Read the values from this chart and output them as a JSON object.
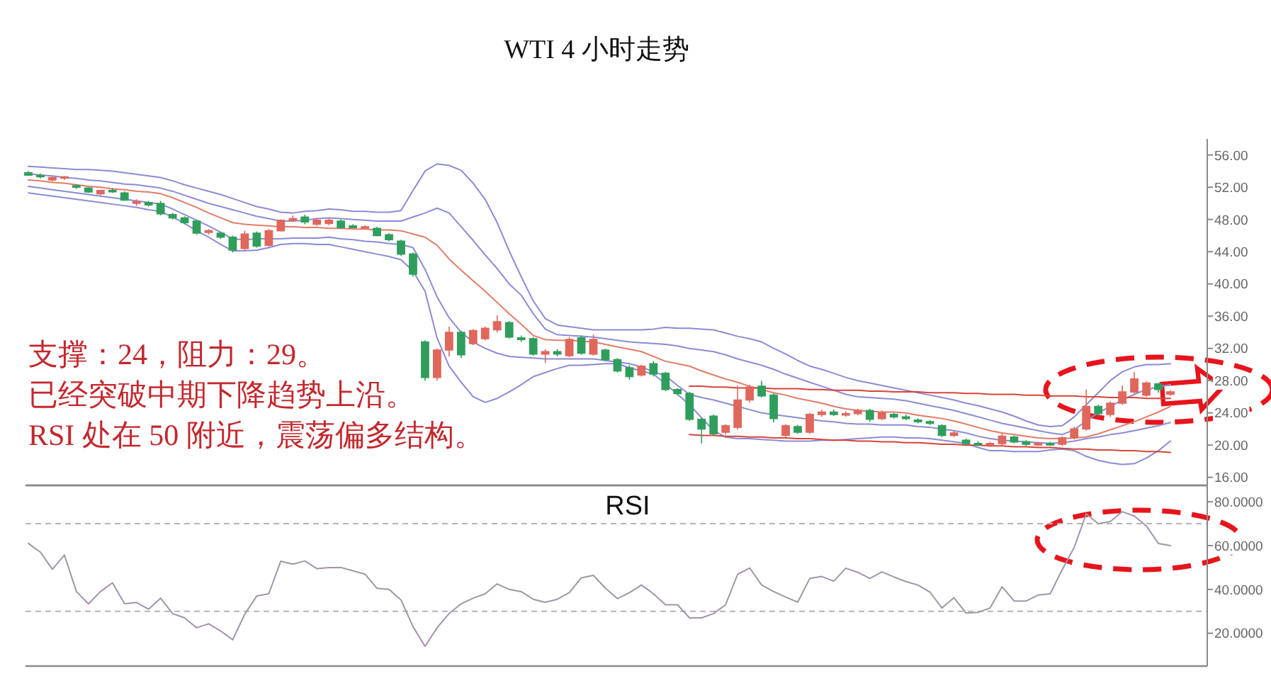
{
  "chart_data": [
    {
      "type": "candlestick",
      "title": "WTI 4 小时走势",
      "categories": [
        null,
        null,
        null,
        null,
        null,
        null,
        null,
        null,
        null,
        null,
        null,
        null,
        null,
        null,
        null,
        null,
        null,
        null,
        null,
        null,
        null,
        null,
        null,
        null,
        null,
        null,
        null,
        null,
        null,
        null,
        null,
        null,
        null,
        null,
        null,
        null,
        null,
        null,
        null,
        null,
        null,
        null,
        null,
        null,
        null,
        null,
        null,
        null,
        null,
        null,
        null,
        null,
        null,
        null,
        null,
        null,
        null,
        null,
        null,
        null,
        null,
        null,
        null,
        null,
        null,
        null,
        null,
        null,
        null,
        null,
        null,
        null,
        null,
        null,
        null,
        null,
        null,
        null,
        null,
        null,
        null,
        null,
        null,
        null,
        null,
        null,
        null,
        null,
        null,
        null,
        null,
        null,
        null,
        null,
        null,
        null
      ],
      "ohlc": [
        [
          53.8,
          54.0,
          53.4,
          53.5
        ],
        [
          53.5,
          53.7,
          53.1,
          53.3
        ],
        [
          52.9,
          53.4,
          52.7,
          53.2
        ],
        [
          53.2,
          53.4,
          52.9,
          53.3
        ],
        [
          52.2,
          52.4,
          51.8,
          52.0
        ],
        [
          51.9,
          52.0,
          51.3,
          51.4
        ],
        [
          51.2,
          51.7,
          51.0,
          51.6
        ],
        [
          51.6,
          51.9,
          51.3,
          51.5
        ],
        [
          51.3,
          51.5,
          50.3,
          50.4
        ],
        [
          50.0,
          50.5,
          49.7,
          50.2
        ],
        [
          50.1,
          50.3,
          49.6,
          49.8
        ],
        [
          50.0,
          50.3,
          48.5,
          48.7
        ],
        [
          48.6,
          48.8,
          48.0,
          48.2
        ],
        [
          48.2,
          48.4,
          47.4,
          47.6
        ],
        [
          47.8,
          48.0,
          46.1,
          46.3
        ],
        [
          46.4,
          46.8,
          46.1,
          46.6
        ],
        [
          46.3,
          46.5,
          45.6,
          45.8
        ],
        [
          45.8,
          46.0,
          43.9,
          44.2
        ],
        [
          44.4,
          46.6,
          44.2,
          46.2
        ],
        [
          46.3,
          46.5,
          44.5,
          44.7
        ],
        [
          44.8,
          46.8,
          44.6,
          46.6
        ],
        [
          46.6,
          48.0,
          46.5,
          47.9
        ],
        [
          47.9,
          48.5,
          47.7,
          48.1
        ],
        [
          48.3,
          48.6,
          47.4,
          47.7
        ],
        [
          47.4,
          48.2,
          47.2,
          47.9
        ],
        [
          47.5,
          48.1,
          47.3,
          47.9
        ],
        [
          47.8,
          48.0,
          46.8,
          47.0
        ],
        [
          47.2,
          47.4,
          46.9,
          47.0
        ],
        [
          47.0,
          47.3,
          46.8,
          47.1
        ],
        [
          46.9,
          47.1,
          45.9,
          46.0
        ],
        [
          46.1,
          46.3,
          45.3,
          45.5
        ],
        [
          45.3,
          45.5,
          43.5,
          43.7
        ],
        [
          43.7,
          43.9,
          40.9,
          41.2
        ],
        [
          32.8,
          33.0,
          28.0,
          28.4
        ],
        [
          28.4,
          32.0,
          28.0,
          31.8
        ],
        [
          31.8,
          34.7,
          31.0,
          34.0
        ],
        [
          34.0,
          34.2,
          30.8,
          31.2
        ],
        [
          32.6,
          34.4,
          32.4,
          34.2
        ],
        [
          33.2,
          34.7,
          33.0,
          34.5
        ],
        [
          34.3,
          36.1,
          34.0,
          35.3
        ],
        [
          35.2,
          35.4,
          33.2,
          33.4
        ],
        [
          33.3,
          33.6,
          32.8,
          33.1
        ],
        [
          33.2,
          33.4,
          31.1,
          31.3
        ],
        [
          31.3,
          31.9,
          30.2,
          31.6
        ],
        [
          31.6,
          31.9,
          31.0,
          31.3
        ],
        [
          31.1,
          33.4,
          30.9,
          33.1
        ],
        [
          33.3,
          33.6,
          31.2,
          31.4
        ],
        [
          31.3,
          33.7,
          31.1,
          33.1
        ],
        [
          31.8,
          32.0,
          30.4,
          30.6
        ],
        [
          30.6,
          30.8,
          29.0,
          29.2
        ],
        [
          29.6,
          29.9,
          28.1,
          28.5
        ],
        [
          28.7,
          30.0,
          28.5,
          29.8
        ],
        [
          30.1,
          30.4,
          28.5,
          28.8
        ],
        [
          28.9,
          29.1,
          26.7,
          26.9
        ],
        [
          26.9,
          27.1,
          26.2,
          26.4
        ],
        [
          26.4,
          26.6,
          23.0,
          23.2
        ],
        [
          23.2,
          23.4,
          20.2,
          22.0
        ],
        [
          23.6,
          23.8,
          21.2,
          21.4
        ],
        [
          21.6,
          22.6,
          21.3,
          22.4
        ],
        [
          22.2,
          27.4,
          21.9,
          25.6
        ],
        [
          25.6,
          27.5,
          25.3,
          27.2
        ],
        [
          27.3,
          28.0,
          25.9,
          26.1
        ],
        [
          26.2,
          26.4,
          22.8,
          23.3
        ],
        [
          21.2,
          22.6,
          21.0,
          22.4
        ],
        [
          22.3,
          22.5,
          21.4,
          21.6
        ],
        [
          21.6,
          24.0,
          21.4,
          23.8
        ],
        [
          23.8,
          24.4,
          23.5,
          24.1
        ],
        [
          24.1,
          24.4,
          23.6,
          23.8
        ],
        [
          23.8,
          24.2,
          23.5,
          23.9
        ],
        [
          23.9,
          24.5,
          23.7,
          24.3
        ],
        [
          24.3,
          24.5,
          22.9,
          23.2
        ],
        [
          23.3,
          24.3,
          23.1,
          24.0
        ],
        [
          23.8,
          24.0,
          23.3,
          23.5
        ],
        [
          23.5,
          23.8,
          23.1,
          23.3
        ],
        [
          23.1,
          23.3,
          22.7,
          22.9
        ],
        [
          22.9,
          23.1,
          22.5,
          22.7
        ],
        [
          22.4,
          22.6,
          21.0,
          21.2
        ],
        [
          21.2,
          21.8,
          21.0,
          21.5
        ],
        [
          20.6,
          20.8,
          19.9,
          20.2
        ],
        [
          20.2,
          20.5,
          19.9,
          20.1
        ],
        [
          20.1,
          20.4,
          19.8,
          20.2
        ],
        [
          20.2,
          21.5,
          20.0,
          21.1
        ],
        [
          21.0,
          21.2,
          20.2,
          20.4
        ],
        [
          20.4,
          20.6,
          19.9,
          20.1
        ],
        [
          20.1,
          20.4,
          19.9,
          20.2
        ],
        [
          20.2,
          20.4,
          19.9,
          20.1
        ],
        [
          20.1,
          21.1,
          19.9,
          20.9
        ],
        [
          20.9,
          22.3,
          20.7,
          22.0
        ],
        [
          22.0,
          26.9,
          21.8,
          24.8
        ],
        [
          24.8,
          25.0,
          23.5,
          23.9
        ],
        [
          23.8,
          25.4,
          23.5,
          25.2
        ],
        [
          25.2,
          27.4,
          25.0,
          26.6
        ],
        [
          26.6,
          29.1,
          26.4,
          28.2
        ],
        [
          26.2,
          27.9,
          26.0,
          27.7
        ],
        [
          27.6,
          27.7,
          26.5,
          26.9
        ],
        [
          26.3,
          26.8,
          26.1,
          26.6
        ]
      ],
      "colors": [
        "#2f9e5c",
        "#2f9e5c",
        "#e0675c",
        "#e0675c",
        "#2f9e5c",
        "#2f9e5c",
        "#e0675c",
        "#2f9e5c",
        "#2f9e5c",
        "#e0675c",
        "#2f9e5c",
        "#2f9e5c",
        "#2f9e5c",
        "#2f9e5c",
        "#2f9e5c",
        "#e0675c",
        "#2f9e5c",
        "#2f9e5c",
        "#e0675c",
        "#2f9e5c",
        "#e0675c",
        "#e0675c",
        "#e0675c",
        "#2f9e5c",
        "#e0675c",
        "#e0675c",
        "#2f9e5c",
        "#2f9e5c",
        "#e0675c",
        "#2f9e5c",
        "#2f9e5c",
        "#2f9e5c",
        "#2f9e5c",
        "#2f9e5c",
        "#e0675c",
        "#e0675c",
        "#2f9e5c",
        "#e0675c",
        "#e0675c",
        "#e0675c",
        "#2f9e5c",
        "#2f9e5c",
        "#2f9e5c",
        "#e0675c",
        "#2f9e5c",
        "#e0675c",
        "#2f9e5c",
        "#e0675c",
        "#2f9e5c",
        "#2f9e5c",
        "#2f9e5c",
        "#e0675c",
        "#2f9e5c",
        "#2f9e5c",
        "#2f9e5c",
        "#2f9e5c",
        "#2f9e5c",
        "#2f9e5c",
        "#e0675c",
        "#e0675c",
        "#e0675c",
        "#2f9e5c",
        "#2f9e5c",
        "#e0675c",
        "#2f9e5c",
        "#e0675c",
        "#e0675c",
        "#2f9e5c",
        "#e0675c",
        "#e0675c",
        "#2f9e5c",
        "#e0675c",
        "#2f9e5c",
        "#2f9e5c",
        "#2f9e5c",
        "#2f9e5c",
        "#2f9e5c",
        "#e0675c",
        "#2f9e5c",
        "#2f9e5c",
        "#e0675c",
        "#e0675c",
        "#2f9e5c",
        "#2f9e5c",
        "#e0675c",
        "#2f9e5c",
        "#e0675c",
        "#e0675c",
        "#e0675c",
        "#2f9e5c",
        "#e0675c",
        "#e0675c",
        "#e0675c",
        "#e0675c",
        "#2f9e5c",
        "#e0675c"
      ],
      "series": [
        {
          "type": "line",
          "color": "#8b8bd6",
          "values": [
            54.6,
            54.5,
            54.4,
            54.3,
            54.2,
            54.2,
            54.1,
            54.0,
            53.8,
            53.6,
            53.4,
            53.2,
            52.8,
            52.3,
            51.9,
            51.5,
            51.1,
            50.6,
            50.1,
            49.6,
            49.3,
            48.9,
            48.8,
            49.0,
            49.1,
            49.3,
            49.2,
            49.0,
            49.0,
            48.9,
            48.9,
            49.1,
            51.6,
            54.0,
            54.9,
            54.7,
            54.1,
            52.5,
            50.5,
            47.6,
            44.1,
            40.9,
            37.9,
            35.7,
            34.9,
            34.7,
            34.5,
            34.3,
            34.3,
            34.3,
            34.3,
            34.3,
            34.4,
            34.6,
            34.5,
            34.5,
            34.4,
            34.3,
            33.9,
            33.5,
            33.2,
            32.8,
            32.0,
            31.3,
            30.5,
            29.8,
            29.4,
            28.9,
            28.4,
            28.0,
            27.7,
            27.4,
            27.1,
            26.8,
            26.5,
            26.2,
            25.9,
            25.6,
            25.2,
            24.9,
            24.5,
            24.1,
            23.6,
            23.0,
            22.5,
            22.3,
            22.4,
            23.5,
            25.0,
            26.5,
            28.0,
            29.1,
            29.7,
            30.0,
            30.0,
            30.1
          ]
        },
        {
          "type": "line",
          "color": "#8b8bd6",
          "values": [
            53.7,
            53.5,
            53.4,
            53.2,
            53.1,
            52.9,
            52.8,
            52.6,
            52.4,
            52.3,
            52.1,
            51.9,
            51.5,
            51.0,
            50.5,
            50.0,
            49.6,
            49.2,
            48.8,
            48.4,
            48.1,
            47.8,
            47.8,
            47.9,
            48.1,
            48.2,
            48.1,
            48.0,
            47.9,
            47.8,
            47.8,
            47.8,
            48.3,
            48.8,
            49.4,
            48.8,
            47.1,
            45.4,
            43.6,
            41.9,
            40.0,
            38.6,
            36.3,
            34.4,
            33.7,
            33.6,
            33.5,
            33.4,
            33.2,
            33.0,
            32.8,
            32.7,
            32.6,
            32.5,
            32.3,
            32.0,
            31.8,
            31.6,
            31.2,
            30.7,
            30.3,
            29.9,
            29.4,
            28.8,
            28.3,
            27.8,
            27.3,
            26.8,
            26.3,
            26.0,
            25.9,
            25.8,
            25.7,
            25.5,
            25.2,
            24.9,
            24.6,
            24.3,
            23.9,
            23.5,
            23.1,
            22.7,
            22.4,
            22.1,
            21.8,
            21.5,
            21.3,
            21.9,
            23.0,
            24.0,
            24.8,
            25.6,
            26.3,
            26.9,
            27.2,
            27.5
          ]
        },
        {
          "type": "line",
          "color": "#e27c68",
          "values": [
            52.9,
            52.8,
            52.6,
            52.5,
            52.3,
            52.1,
            52.0,
            51.8,
            51.7,
            51.5,
            51.4,
            51.2,
            50.7,
            50.1,
            49.5,
            48.8,
            48.2,
            47.6,
            47.4,
            47.3,
            47.2,
            47.1,
            47.1,
            47.0,
            47.0,
            46.9,
            46.9,
            46.8,
            46.8,
            46.7,
            46.7,
            46.6,
            46.2,
            45.8,
            44.8,
            43.1,
            41.7,
            40.4,
            39.1,
            37.7,
            36.3,
            35.0,
            33.6,
            33.1,
            33.0,
            33.0,
            32.9,
            32.8,
            32.5,
            32.2,
            31.9,
            31.6,
            31.0,
            30.4,
            30.1,
            29.8,
            29.2,
            28.7,
            28.2,
            27.8,
            27.3,
            26.9,
            26.5,
            26.2,
            25.8,
            25.5,
            25.2,
            24.8,
            24.5,
            24.3,
            24.2,
            24.1,
            24.1,
            24.0,
            23.7,
            23.5,
            23.3,
            23.0,
            22.6,
            22.2,
            21.8,
            21.5,
            21.3,
            21.1,
            20.9,
            20.8,
            20.8,
            20.9,
            21.0,
            21.4,
            21.9,
            22.4,
            22.9,
            23.5,
            24.1,
            24.8
          ]
        },
        {
          "type": "line",
          "color": "#8b8bd6",
          "values": [
            52.1,
            51.9,
            51.7,
            51.5,
            51.3,
            51.1,
            50.9,
            50.7,
            50.5,
            50.3,
            50.1,
            49.9,
            49.3,
            48.6,
            47.9,
            47.2,
            46.4,
            45.6,
            45.5,
            45.6,
            45.6,
            45.6,
            45.7,
            45.7,
            45.7,
            45.8,
            45.6,
            45.5,
            45.3,
            45.2,
            45.0,
            44.9,
            44.5,
            41.8,
            38.4,
            35.8,
            34.0,
            32.8,
            32.0,
            31.4,
            31.0,
            30.9,
            30.8,
            30.7,
            30.7,
            30.7,
            30.7,
            30.7,
            30.5,
            30.3,
            30.1,
            29.7,
            29.1,
            28.6,
            27.4,
            26.3,
            25.9,
            25.6,
            25.2,
            24.8,
            24.4,
            24.0,
            23.8,
            23.6,
            23.4,
            23.2,
            23.0,
            22.9,
            22.7,
            22.6,
            22.6,
            22.5,
            22.5,
            22.5,
            22.3,
            22.2,
            22.0,
            21.8,
            21.5,
            21.1,
            20.8,
            20.6,
            20.5,
            20.4,
            20.3,
            20.2,
            20.3,
            20.5,
            20.8,
            21.0,
            21.3,
            21.5,
            21.8,
            22.1,
            22.4,
            22.8
          ]
        },
        {
          "type": "line",
          "color": "#8b8bd6",
          "values": [
            51.3,
            51.1,
            50.9,
            50.7,
            50.5,
            50.3,
            50.1,
            49.9,
            49.7,
            49.5,
            49.2,
            49.0,
            48.3,
            47.5,
            46.6,
            45.8,
            44.9,
            44.1,
            44.1,
            44.2,
            44.5,
            44.9,
            45.0,
            45.0,
            44.9,
            44.9,
            44.6,
            44.3,
            44.0,
            43.7,
            43.4,
            43.0,
            41.6,
            39.1,
            33.3,
            29.8,
            27.8,
            26.0,
            25.3,
            25.8,
            26.6,
            27.5,
            28.5,
            29.0,
            29.5,
            29.9,
            29.9,
            30.0,
            30.1,
            30.1,
            29.6,
            29.2,
            28.8,
            27.6,
            26.3,
            25.0,
            23.4,
            21.8,
            21.0,
            20.8,
            20.8,
            20.7,
            20.6,
            20.5,
            20.5,
            20.5,
            20.6,
            20.6,
            20.7,
            20.8,
            20.9,
            21.0,
            21.0,
            20.9,
            20.9,
            20.8,
            20.6,
            20.4,
            20.2,
            19.7,
            19.3,
            19.3,
            19.2,
            19.2,
            19.2,
            19.4,
            19.5,
            19.3,
            18.6,
            18.1,
            17.8,
            17.6,
            17.7,
            18.4,
            19.3,
            20.5
          ]
        },
        {
          "type": "line",
          "color": "#d8443c",
          "values": [
            null,
            null,
            null,
            null,
            null,
            null,
            null,
            null,
            null,
            null,
            null,
            null,
            null,
            null,
            null,
            null,
            null,
            null,
            null,
            null,
            null,
            null,
            null,
            null,
            null,
            null,
            null,
            null,
            null,
            null,
            null,
            null,
            null,
            null,
            null,
            null,
            null,
            null,
            null,
            null,
            null,
            null,
            null,
            null,
            null,
            null,
            null,
            null,
            null,
            null,
            null,
            null,
            null,
            null,
            null,
            27.3,
            27.3,
            27.2,
            27.2,
            27.1,
            27.1,
            27.1,
            27.0,
            27.0,
            27.0,
            26.9,
            26.9,
            26.8,
            26.8,
            26.8,
            26.7,
            26.7,
            26.6,
            26.6,
            26.6,
            26.5,
            26.5,
            26.5,
            26.4,
            26.4,
            26.3,
            26.3,
            26.3,
            26.2,
            26.2,
            26.1,
            26.1,
            26.1,
            26.0,
            26.0,
            25.9,
            25.9,
            25.9,
            25.8,
            25.8,
            25.8
          ]
        },
        {
          "type": "line",
          "color": "#d8443c",
          "values": [
            null,
            null,
            null,
            null,
            null,
            null,
            null,
            null,
            null,
            null,
            null,
            null,
            null,
            null,
            null,
            null,
            null,
            null,
            null,
            null,
            null,
            null,
            null,
            null,
            null,
            null,
            null,
            null,
            null,
            null,
            null,
            null,
            null,
            null,
            null,
            null,
            null,
            null,
            null,
            null,
            null,
            null,
            null,
            null,
            null,
            null,
            null,
            null,
            null,
            null,
            null,
            null,
            null,
            null,
            null,
            21.3,
            21.2,
            21.2,
            21.1,
            21.1,
            21.0,
            21.0,
            20.9,
            20.9,
            20.8,
            20.8,
            20.7,
            20.6,
            20.6,
            20.5,
            20.5,
            20.4,
            20.4,
            20.3,
            20.3,
            20.2,
            20.1,
            20.1,
            20.0,
            20.0,
            19.9,
            19.9,
            19.8,
            19.8,
            19.7,
            19.7,
            19.6,
            19.5,
            19.5,
            19.4,
            19.4,
            19.3,
            19.3,
            19.2,
            19.2,
            19.1
          ]
        }
      ],
      "ylim": [
        15,
        58
      ],
      "yticks": [
        {
          "value": 16,
          "label": "16.00"
        },
        {
          "value": 20,
          "label": "20.00"
        },
        {
          "value": 24,
          "label": "24.00"
        },
        {
          "value": 28,
          "label": "28.00"
        },
        {
          "value": 32,
          "label": "32.00"
        },
        {
          "value": 36,
          "label": "36.00"
        },
        {
          "value": 40,
          "label": "40.00"
        },
        {
          "value": 44,
          "label": "44.00"
        },
        {
          "value": 48,
          "label": "48.00"
        },
        {
          "value": 52,
          "label": "52.00"
        },
        {
          "value": 56,
          "label": "56.00"
        }
      ],
      "tick_labels": "y",
      "annotations": [
        "支撑：24，阻力：29。",
        "已经突破中期下降趋势上沿。",
        "RSI 处在 50 附近，震荡偏多结构。"
      ]
    },
    {
      "type": "line",
      "title": "RSI",
      "categories": [
        null,
        null,
        null,
        null,
        null,
        null,
        null,
        null,
        null,
        null,
        null,
        null,
        null,
        null,
        null,
        null,
        null,
        null,
        null,
        null,
        null,
        null,
        null,
        null,
        null,
        null,
        null,
        null,
        null,
        null,
        null,
        null,
        null,
        null,
        null,
        null,
        null,
        null,
        null,
        null,
        null,
        null,
        null,
        null,
        null,
        null,
        null,
        null,
        null,
        null,
        null,
        null,
        null,
        null,
        null,
        null,
        null,
        null,
        null,
        null,
        null,
        null,
        null,
        null,
        null,
        null,
        null,
        null,
        null,
        null,
        null,
        null,
        null,
        null,
        null,
        null,
        null,
        null,
        null,
        null,
        null,
        null,
        null,
        null,
        null,
        null,
        null,
        null,
        null,
        null,
        null,
        null,
        null,
        null,
        null,
        null
      ],
      "series": [
        {
          "color": "#a294a8",
          "values": [
            61,
            57,
            49.2,
            55.7,
            39,
            33.4,
            39,
            43,
            33.5,
            34,
            31,
            36,
            29,
            27,
            22.5,
            24.3,
            21,
            17,
            28.7,
            37,
            38,
            52.9,
            51.5,
            53,
            49.5,
            50,
            50,
            48.5,
            47,
            40.5,
            40,
            35.2,
            23,
            14,
            22.5,
            29,
            33.4,
            36,
            38,
            42.5,
            40,
            39,
            35.5,
            34.1,
            35.5,
            38.5,
            45.3,
            46.4,
            40.6,
            35.8,
            38.5,
            42,
            38,
            33,
            33,
            27,
            27,
            29,
            33,
            46.9,
            49.8,
            42,
            39,
            36.5,
            34.2,
            45,
            45.9,
            43.8,
            49.7,
            47.8,
            45,
            48,
            45.7,
            43.6,
            42,
            38.8,
            31.5,
            36.2,
            29.2,
            29.5,
            31.5,
            41.2,
            34.7,
            34.7,
            37.4,
            38,
            49,
            59.2,
            74.5,
            70,
            71,
            75.5,
            73.5,
            69,
            61,
            60
          ]
        }
      ],
      "ylim": [
        5,
        87.5
      ],
      "yticks": [
        {
          "value": 20,
          "label": "20.0000"
        },
        {
          "value": 40,
          "label": "40.0000"
        },
        {
          "value": 60,
          "label": "60.0000"
        },
        {
          "value": 80,
          "label": "80.0000"
        }
      ],
      "tick_labels": "y",
      "ref_lines": [
        {
          "axis": "y",
          "value": 70,
          "color": "#b4b4b4",
          "line_style": "dashed"
        },
        {
          "axis": "y",
          "value": 30,
          "color": "#b4b4b4",
          "line_style": "dashed"
        }
      ]
    }
  ]
}
